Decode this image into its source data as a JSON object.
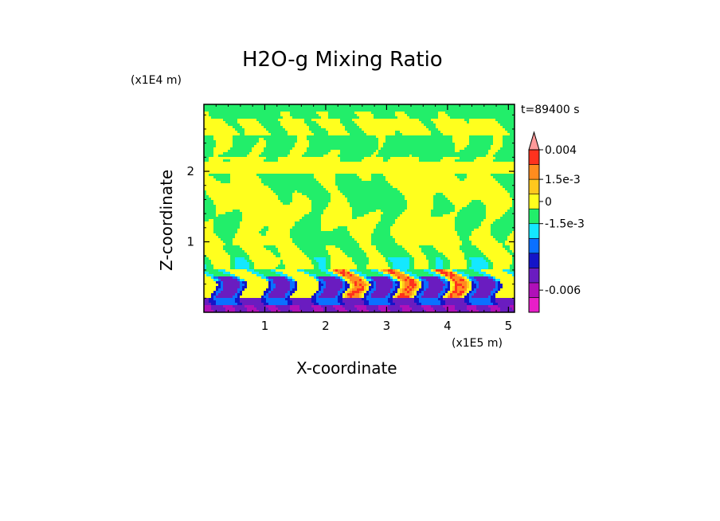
{
  "chart_data": {
    "type": "heatmap",
    "title": "H2O-g Mixing Ratio",
    "xlabel": "X-coordinate",
    "ylabel": "Z-coordinate",
    "x_units": "(x1E5 m)",
    "z_units": "(x1E4 m)",
    "time_label": "t=89400 s",
    "x_range": [
      0,
      5.1
    ],
    "z_range": [
      0,
      2.95
    ],
    "x_ticks": [
      1,
      2,
      3,
      4,
      5
    ],
    "z_ticks": [
      1,
      2
    ],
    "colorbar": {
      "colors": [
        "#e81ec8",
        "#b010b8",
        "#6a1cc0",
        "#1414c8",
        "#0a70ff",
        "#14e8ff",
        "#22ee6a",
        "#ffff1e",
        "#ffc81e",
        "#ff8c1e",
        "#ff321e",
        "#ff9a9a"
      ],
      "labels": [
        {
          "text": "0.004",
          "level": 11
        },
        {
          "text": "1.5e-3",
          "level": 9
        },
        {
          "text": "0",
          "level": 7.5
        },
        {
          "text": "-1.5e-3",
          "level": 6
        },
        {
          "text": "-0.006",
          "level": 1.5
        }
      ]
    }
  }
}
